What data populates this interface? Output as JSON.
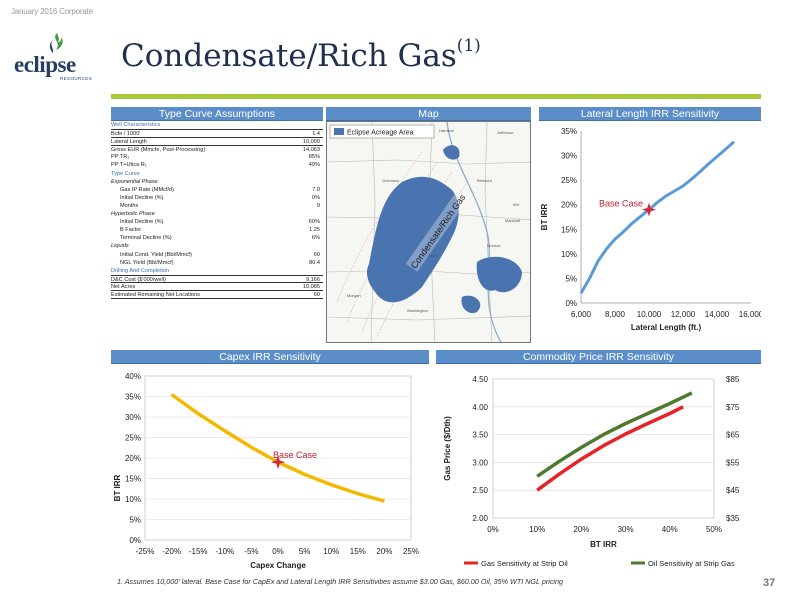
{
  "header": {
    "date": "January 2016 Corporate",
    "title": "Condensate/Rich Gas",
    "title_sup": "(1)"
  },
  "logo": {
    "name": "eclipse",
    "sub": "RESOURCES"
  },
  "colors": {
    "panel_header": "#5b8ec9",
    "rule": "#a7c93c",
    "title": "#1f2f4e",
    "curve_blue": "#5b9bd5",
    "curve_yellow": "#f5b800",
    "gas_red": "#e52329",
    "oil_green": "#4e7a2e",
    "marker": "#d22b3b"
  },
  "panels": {
    "type_curve": "Type Curve Assumptions",
    "map": "Map",
    "lateral": "Lateral Length IRR Sensitivity",
    "capex": "Capex IRR Sensitivity",
    "commodity": "Commodity Price IRR Sensitivity"
  },
  "table": [
    {
      "label": "Well Characteristics",
      "value": "",
      "style": "sec"
    },
    {
      "label": "Bcfe / 1000'",
      "value": "1.4",
      "style": "bt"
    },
    {
      "label": "Lateral Length",
      "value": "10,000",
      "style": "bt"
    },
    {
      "label": "Gross EUR (Mmcfe, Post-Processing)",
      "value": "14,063",
      "style": "bt"
    },
    {
      "label": "PP TR₁",
      "value": "85%",
      "style": ""
    },
    {
      "label": "PP T+Utica R₁",
      "value": "49%",
      "style": ""
    },
    {
      "label": "Type Curve",
      "value": "",
      "style": "sec"
    },
    {
      "label": "Exponential Phase",
      "value": "",
      "style": "ital"
    },
    {
      "label": "Gas IP Rate (MMcf/d)",
      "value": "7.0",
      "style": "ind"
    },
    {
      "label": "Initial Decline (%)",
      "value": "0%",
      "style": "ind"
    },
    {
      "label": "Months",
      "value": "9",
      "style": "ind"
    },
    {
      "label": "Hyperbolic Phase",
      "value": "",
      "style": "ital"
    },
    {
      "label": "Initial Decline (%)",
      "value": "60%",
      "style": "ind"
    },
    {
      "label": "B Factor",
      "value": "1.25",
      "style": "ind"
    },
    {
      "label": "Terminal Decline (%)",
      "value": "6%",
      "style": "ind"
    },
    {
      "label": "Liquids",
      "value": "",
      "style": "ital"
    },
    {
      "label": "Initial Cond. Yield (Bbl/Mmcf)",
      "value": "60",
      "style": "ind"
    },
    {
      "label": "NGL Yield (Bbl/Mmcf)",
      "value": "80.4",
      "style": "ind"
    },
    {
      "label": "Drilling And Completion",
      "value": "",
      "style": "sec"
    },
    {
      "label": "D&C Cost ($'000/well)",
      "value": "9,166",
      "style": "bt bb"
    },
    {
      "label": "Net Acres",
      "value": "10,085",
      "style": "bb"
    },
    {
      "label": "Estimated Remaining Net Locations",
      "value": "60",
      "style": "bb"
    }
  ],
  "map": {
    "legend": "Eclipse Acreage Area",
    "label": "Condensate/Rich Gas",
    "places": [
      "Belmont",
      "Monroe",
      "Noble",
      "Morgan",
      "Washington",
      "Guernsey",
      "Harrison",
      "Jefferson",
      "WV",
      "Marshall"
    ]
  },
  "chart_data": [
    {
      "type": "line",
      "title": "Lateral Length IRR Sensitivity",
      "xlabel": "Lateral Length (ft.)",
      "ylabel": "BT IRR",
      "xlim": [
        6000,
        16000
      ],
      "ylim": [
        0,
        35
      ],
      "xticks": [
        "6,000",
        "8,000",
        "10,000",
        "12,000",
        "14,000",
        "16,000"
      ],
      "yticks": [
        "0%",
        "5%",
        "10%",
        "15%",
        "20%",
        "25%",
        "30%",
        "35%"
      ],
      "x": [
        6000,
        6500,
        7000,
        7500,
        8000,
        8500,
        9000,
        9500,
        10000,
        10500,
        11000,
        11500,
        12000,
        12500,
        13000,
        13500,
        14000,
        14500,
        15000
      ],
      "series": [
        {
          "values": [
            2,
            5,
            8.5,
            11,
            13,
            14.5,
            16.2,
            17.6,
            19,
            20.5,
            21.8,
            22.8,
            23.8,
            25.2,
            26.7,
            28.3,
            29.8,
            31.3,
            32.8
          ]
        }
      ],
      "annotation": {
        "text": "Base Case",
        "x": 10000,
        "y": 19
      },
      "grid": false
    },
    {
      "type": "line",
      "title": "Capex IRR Sensitivity",
      "xlabel": "Capex Change",
      "ylabel": "BT IRR",
      "xlim": [
        -25,
        25
      ],
      "ylim": [
        0,
        40
      ],
      "xticks": [
        "-25%",
        "-20%",
        "-15%",
        "-10%",
        "-5%",
        "0%",
        "5%",
        "10%",
        "15%",
        "20%",
        "25%"
      ],
      "yticks": [
        "0%",
        "5%",
        "10%",
        "15%",
        "20%",
        "25%",
        "30%",
        "35%",
        "40%"
      ],
      "x": [
        -20,
        -15,
        -10,
        -5,
        0,
        5,
        10,
        15,
        20
      ],
      "series": [
        {
          "values": [
            35.5,
            30.8,
            26.6,
            22.6,
            19,
            16,
            13.5,
            11.3,
            9.5
          ]
        }
      ],
      "annotation": {
        "text": "Base Case",
        "x": 0,
        "y": 19
      },
      "grid": true
    },
    {
      "type": "line",
      "title": "Commodity Price IRR Sensitivity",
      "xlabel": "BT IRR",
      "ylabel": "Gas Price ($/Dth)",
      "xlim": [
        0,
        50
      ],
      "ylim": [
        2.0,
        4.5
      ],
      "y2lim": [
        35,
        85
      ],
      "xticks": [
        "0%",
        "10%",
        "20%",
        "30%",
        "40%",
        "50%"
      ],
      "yticks": [
        "2.00",
        "2.50",
        "3.00",
        "3.50",
        "4.00",
        "4.50"
      ],
      "y2ticks": [
        "$35",
        "$45",
        "$55",
        "$65",
        "$75",
        "$85"
      ],
      "series": [
        {
          "name": "Gas Sensitivity at Strip Oil",
          "x": [
            10,
            15,
            20,
            25,
            30,
            35,
            40,
            43
          ],
          "values": [
            2.5,
            2.79,
            3.06,
            3.3,
            3.51,
            3.7,
            3.88,
            4.0
          ]
        },
        {
          "name": "Oil Sensitivity at Strip Gas",
          "x": [
            10,
            15,
            20,
            25,
            30,
            35,
            40,
            45
          ],
          "values": [
            2.75,
            3.02,
            3.27,
            3.5,
            3.7,
            3.88,
            4.06,
            4.25
          ]
        }
      ],
      "legend": "bottom",
      "grid": true
    }
  ],
  "footnote": "1.  Assumes 10,000' lateral. Base Case for CapEx and Lateral Length IRR Sensitivities assume $3.00 Gas, $60.00 Oil, 35% WTI NGL pricing",
  "page_number": "37"
}
